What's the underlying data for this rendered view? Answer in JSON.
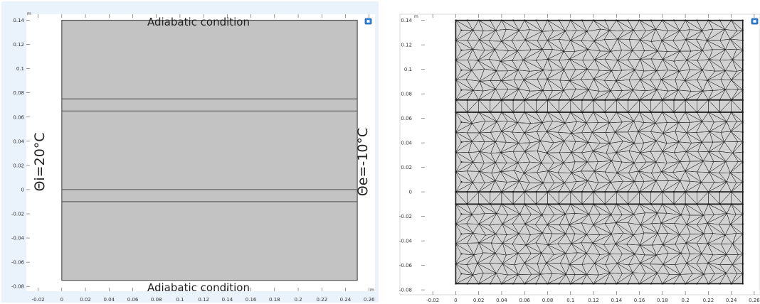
{
  "colors": {
    "frame_bg": "#eaf3fb",
    "plot_bg": "#ffffff",
    "domain_fill": "#c3c3c3",
    "domain_edge": "#555555",
    "mesh_fill": "#d2d2d2",
    "mesh_edge": "#1a1a1a",
    "icon_blue": "#2f7fd8"
  },
  "geometry_panel": {
    "annotations": {
      "top": "Adiabatic condition",
      "bottom": "Adiabatic condition",
      "left": "Θi=20°C",
      "right": "Θe=-10°C"
    },
    "axis_unit": "m",
    "x_range": [
      -0.03,
      0.265
    ],
    "y_range": [
      -0.084,
      0.145
    ],
    "domain": {
      "x": [
        0,
        0.25
      ],
      "y": [
        -0.075,
        0.14
      ]
    },
    "interface_lines_y": [
      0.075,
      0.065,
      0.0,
      -0.01
    ],
    "x_ticks": [
      "-0.02",
      "0",
      "0.02",
      "0.04",
      "0.06",
      "0.08",
      "0.1",
      "0.12",
      "0.14",
      "0.16",
      "0.18",
      "0.2",
      "0.22",
      "0.24",
      "0.26"
    ],
    "y_ticks": [
      "0.14",
      "0.12",
      "0.1",
      "0.08",
      "0.06",
      "0.04",
      "0.02",
      "0",
      "-0.02",
      "-0.04",
      "-0.06",
      "-0.08"
    ]
  },
  "mesh_panel": {
    "axis_unit": "m",
    "x_range": [
      -0.03,
      0.265
    ],
    "y_range": [
      -0.084,
      0.145
    ],
    "domain": {
      "x": [
        0,
        0.25
      ],
      "y": [
        -0.075,
        0.14
      ]
    },
    "interface_lines_y": [
      0.075,
      0.065,
      0.0,
      -0.01
    ],
    "mesh_size": 0.01,
    "x_ticks": [
      "-0.02",
      "0",
      "0.02",
      "0.04",
      "0.06",
      "0.08",
      "0.1",
      "0.12",
      "0.14",
      "0.16",
      "0.18",
      "0.2",
      "0.22",
      "0.24",
      "0.26"
    ],
    "y_ticks": [
      "0.14",
      "0.12",
      "0.1",
      "0.08",
      "0.06",
      "0.04",
      "0.02",
      "0",
      "-0.02",
      "-0.04",
      "-0.06",
      "-0.08"
    ]
  },
  "icons": [
    "zoom-extents-icon",
    "zoom-extents-icon"
  ]
}
